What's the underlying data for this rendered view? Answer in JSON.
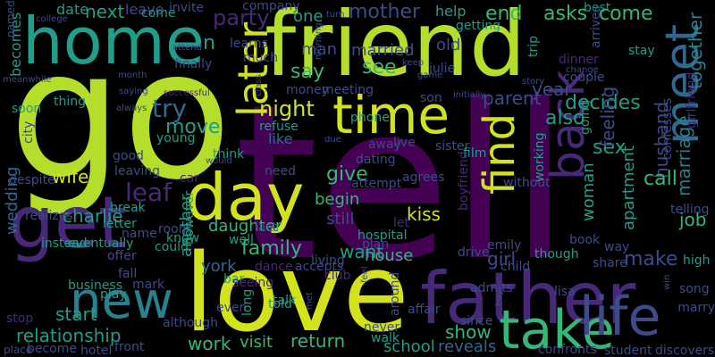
{
  "palette": {
    "background": "#000000",
    "lime": "#b5de2b",
    "yellowgreen": "#d2e21b",
    "green": "#35b779",
    "teal": "#1f9e89",
    "sea": "#26828e",
    "blue": "#31688e",
    "indigo": "#3e4a89",
    "violet": "#482878",
    "purple": "#440154"
  },
  "words": [
    {
      "text": "tell",
      "color": "purple"
    },
    {
      "text": "go",
      "color": "lime"
    },
    {
      "text": "friend",
      "color": "lime"
    },
    {
      "text": "love",
      "color": "yellowgreen"
    },
    {
      "text": "father",
      "color": "violet"
    },
    {
      "text": "get",
      "color": "violet"
    },
    {
      "text": "home",
      "color": "teal"
    },
    {
      "text": "time",
      "color": "yellowgreen"
    },
    {
      "text": "day",
      "color": "yellowgreen"
    },
    {
      "text": "new",
      "color": "sea"
    },
    {
      "text": "take",
      "color": "green"
    },
    {
      "text": "life",
      "color": "indigo"
    },
    {
      "text": "meet",
      "color": "blue"
    },
    {
      "text": "find",
      "color": "yellowgreen"
    },
    {
      "text": "later",
      "color": "yellowgreen"
    },
    {
      "text": "back",
      "color": "violet"
    },
    {
      "text": "night",
      "color": "yellowgreen"
    },
    {
      "text": "try",
      "color": "blue"
    },
    {
      "text": "say",
      "color": "green"
    },
    {
      "text": "see",
      "color": "green"
    },
    {
      "text": "mother",
      "color": "indigo"
    },
    {
      "text": "end",
      "color": "green"
    },
    {
      "text": "asks",
      "color": "green"
    },
    {
      "text": "come",
      "color": "green"
    },
    {
      "text": "together",
      "color": "sea"
    },
    {
      "text": "husband",
      "color": "indigo"
    },
    {
      "text": "marriage",
      "color": "sea"
    },
    {
      "text": "family",
      "color": "green"
    },
    {
      "text": "daughter",
      "color": "green"
    },
    {
      "text": "york",
      "color": "blue"
    },
    {
      "text": "house",
      "color": "green"
    },
    {
      "text": "want",
      "color": "teal"
    },
    {
      "text": "kiss",
      "color": "yellowgreen"
    },
    {
      "text": "give",
      "color": "green"
    },
    {
      "text": "begin",
      "color": "green"
    },
    {
      "text": "still",
      "color": "indigo"
    },
    {
      "text": "return",
      "color": "green"
    },
    {
      "text": "visit",
      "color": "green"
    },
    {
      "text": "work",
      "color": "green"
    },
    {
      "text": "show",
      "color": "green"
    },
    {
      "text": "school",
      "color": "teal"
    },
    {
      "text": "reveals",
      "color": "blue"
    },
    {
      "text": "relationship",
      "color": "teal"
    },
    {
      "text": "wedding",
      "color": "blue"
    },
    {
      "text": "wife",
      "color": "yellowgreen"
    },
    {
      "text": "charlie",
      "color": "teal"
    },
    {
      "text": "leaf",
      "color": "violet"
    },
    {
      "text": "party",
      "color": "violet"
    },
    {
      "text": "next",
      "color": "teal"
    },
    {
      "text": "date",
      "color": "teal"
    },
    {
      "text": "leave",
      "color": "indigo"
    },
    {
      "text": "move",
      "color": "teal"
    },
    {
      "text": "however",
      "color": "teal"
    },
    {
      "text": "like",
      "color": "blue"
    },
    {
      "text": "also",
      "color": "teal"
    },
    {
      "text": "decides",
      "color": "teal"
    },
    {
      "text": "year",
      "color": "indigo"
    },
    {
      "text": "parent",
      "color": "indigo"
    },
    {
      "text": "sex",
      "color": "teal"
    },
    {
      "text": "woman",
      "color": "teal"
    },
    {
      "text": "apartment",
      "color": "teal"
    },
    {
      "text": "feeling",
      "color": "indigo"
    },
    {
      "text": "call",
      "color": "green"
    },
    {
      "text": "make",
      "color": "indigo"
    },
    {
      "text": "girl",
      "color": "indigo"
    },
    {
      "text": "job",
      "color": "green"
    },
    {
      "text": "start",
      "color": "teal"
    },
    {
      "text": "becomes",
      "color": "teal"
    },
    {
      "text": "help",
      "color": "teal"
    },
    {
      "text": "old",
      "color": "indigo"
    },
    {
      "text": "married",
      "color": "indigo"
    },
    {
      "text": "man",
      "color": "indigo"
    },
    {
      "text": "one",
      "color": "teal"
    },
    {
      "text": "n",
      "color": "teal"
    },
    {
      "text": "another",
      "color": "teal"
    },
    {
      "text": "stay",
      "color": "teal"
    },
    {
      "text": "fall",
      "color": "indigo"
    },
    {
      "text": "play",
      "color": "teal"
    },
    {
      "text": "business",
      "color": "teal"
    },
    {
      "text": "talk",
      "color": "teal"
    },
    {
      "text": "hotel",
      "color": "indigo"
    },
    {
      "text": "become",
      "color": "indigo"
    },
    {
      "text": "place",
      "color": "indigo"
    },
    {
      "text": "student",
      "color": "indigo"
    },
    {
      "text": "discovers",
      "color": "indigo"
    },
    {
      "text": "marry",
      "color": "indigo"
    },
    {
      "text": "high",
      "color": "teal"
    },
    {
      "text": "song",
      "color": "indigo"
    },
    {
      "text": "share",
      "color": "indigo"
    },
    {
      "text": "way",
      "color": "indigo"
    },
    {
      "text": "though",
      "color": "teal"
    },
    {
      "text": "going",
      "color": "teal"
    },
    {
      "text": "film",
      "color": "teal"
    },
    {
      "text": "agrees",
      "color": "indigo"
    },
    {
      "text": "away",
      "color": "indigo"
    },
    {
      "text": "phone",
      "color": "teal"
    },
    {
      "text": "refuse",
      "color": "teal"
    },
    {
      "text": "think",
      "color": "teal"
    },
    {
      "text": "need",
      "color": "indigo"
    },
    {
      "text": "young",
      "color": "teal"
    },
    {
      "text": "leaving",
      "color": "indigo"
    },
    {
      "text": "good",
      "color": "indigo"
    },
    {
      "text": "break",
      "color": "teal"
    },
    {
      "text": "letter",
      "color": "teal"
    },
    {
      "text": "realizes",
      "color": "indigo"
    },
    {
      "text": "offer",
      "color": "indigo"
    },
    {
      "text": "room",
      "color": "indigo"
    },
    {
      "text": "could",
      "color": "teal"
    },
    {
      "text": "know",
      "color": "teal"
    },
    {
      "text": "well",
      "color": "teal"
    },
    {
      "text": "bar",
      "color": "teal"
    },
    {
      "text": "even",
      "color": "indigo"
    },
    {
      "text": "mark",
      "color": "indigo"
    },
    {
      "text": "come",
      "color": "teal"
    },
    {
      "text": "thing",
      "color": "teal"
    },
    {
      "text": "soon",
      "color": "teal"
    },
    {
      "text": "instead",
      "color": "teal"
    },
    {
      "text": "eventually",
      "color": "teal"
    },
    {
      "text": "finally",
      "color": "indigo"
    },
    {
      "text": "much",
      "color": "indigo"
    },
    {
      "text": "learns",
      "color": "indigo"
    },
    {
      "text": "invite",
      "color": "indigo"
    },
    {
      "text": "company",
      "color": "indigo"
    },
    {
      "text": "money",
      "color": "indigo"
    },
    {
      "text": "meeting",
      "color": "indigo"
    },
    {
      "text": "julie",
      "color": "indigo"
    },
    {
      "text": "emily",
      "color": "indigo"
    },
    {
      "text": "dinner",
      "color": "violet"
    },
    {
      "text": "trip",
      "color": "teal"
    },
    {
      "text": "getting",
      "color": "teal"
    },
    {
      "text": "best",
      "color": "teal"
    },
    {
      "text": "arrives",
      "color": "indigo"
    },
    {
      "text": "couple",
      "color": "indigo"
    },
    {
      "text": "live",
      "color": "indigo"
    },
    {
      "text": "sister",
      "color": "indigo"
    },
    {
      "text": "dating",
      "color": "indigo"
    },
    {
      "text": "attempt",
      "color": "indigo"
    },
    {
      "text": "without",
      "color": "indigo"
    },
    {
      "text": "working",
      "color": "teal"
    },
    {
      "text": "boyfriend",
      "color": "violet"
    },
    {
      "text": "girlfriend",
      "color": "violet"
    },
    {
      "text": "confesses",
      "color": "indigo"
    },
    {
      "text": "telling",
      "color": "indigo"
    },
    {
      "text": "book",
      "color": "indigo"
    },
    {
      "text": "let",
      "color": "violet"
    },
    {
      "text": "hospital",
      "color": "teal"
    },
    {
      "text": "plan",
      "color": "indigo"
    },
    {
      "text": "child",
      "color": "indigo"
    },
    {
      "text": "lisa",
      "color": "indigo"
    },
    {
      "text": "drive",
      "color": "indigo"
    },
    {
      "text": "since",
      "color": "indigo"
    },
    {
      "text": "affair",
      "color": "indigo"
    },
    {
      "text": "never",
      "color": "indigo"
    },
    {
      "text": "walk",
      "color": "teal"
    },
    {
      "text": "around",
      "color": "indigo"
    },
    {
      "text": "club",
      "color": "violet"
    },
    {
      "text": "living",
      "color": "indigo"
    },
    {
      "text": "accepts",
      "color": "indigo"
    },
    {
      "text": "dance",
      "color": "violet"
    },
    {
      "text": "seeing",
      "color": "violet"
    },
    {
      "text": "told",
      "color": "teal"
    },
    {
      "text": "long",
      "color": "teal"
    },
    {
      "text": "although",
      "color": "indigo"
    },
    {
      "text": "stop",
      "color": "violet"
    },
    {
      "text": "front",
      "color": "indigo"
    },
    {
      "text": "confronts",
      "color": "indigo"
    },
    {
      "text": "admits",
      "color": "indigo"
    },
    {
      "text": "name",
      "color": "indigo"
    },
    {
      "text": "last",
      "color": "indigo"
    },
    {
      "text": "car",
      "color": "violet"
    },
    {
      "text": "despite",
      "color": "indigo"
    },
    {
      "text": "city",
      "color": "indigo"
    },
    {
      "text": "meanwhile",
      "color": "indigo"
    },
    {
      "text": "college",
      "color": "indigo"
    },
    {
      "text": "named",
      "color": "indigo"
    },
    {
      "text": "attend",
      "color": "indigo"
    },
    {
      "text": "turn",
      "color": "indigo"
    },
    {
      "text": "keep",
      "color": "indigo"
    },
    {
      "text": "game",
      "color": "indigo"
    },
    {
      "text": "son",
      "color": "indigo"
    },
    {
      "text": "initially",
      "color": "indigo"
    },
    {
      "text": "morning",
      "color": "indigo"
    },
    {
      "text": "would",
      "color": "indigo"
    },
    {
      "text": "class",
      "color": "indigo"
    },
    {
      "text": "successful",
      "color": "violet"
    },
    {
      "text": "always",
      "color": "indigo"
    },
    {
      "text": "saying",
      "color": "indigo"
    },
    {
      "text": "month",
      "color": "indigo"
    },
    {
      "text": "story",
      "color": "indigo"
    },
    {
      "text": "change",
      "color": "indigo"
    },
    {
      "text": "due",
      "color": "indigo"
    },
    {
      "text": "win",
      "color": "indigo"
    },
    {
      "text": "boy",
      "color": "indigo"
    },
    {
      "text": "met",
      "color": "indigo"
    },
    {
      "text": "feel",
      "color": "indigo"
    },
    {
      "text": "alone",
      "color": "violet"
    },
    {
      "text": "upset",
      "color": "violet"
    },
    {
      "text": "making",
      "color": "violet"
    },
    {
      "text": "spend",
      "color": "violet"
    }
  ]
}
